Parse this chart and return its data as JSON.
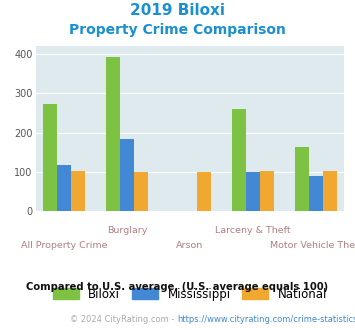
{
  "title_line1": "2019 Biloxi",
  "title_line2": "Property Crime Comparison",
  "biloxi": [
    272,
    393,
    0,
    261,
    163
  ],
  "mississippi": [
    117,
    185,
    0,
    101,
    90
  ],
  "national": [
    102,
    101,
    101,
    102,
    102
  ],
  "group_label_row1": [
    "",
    "Burglary",
    "",
    "Larceny & Theft",
    ""
  ],
  "group_label_row2": [
    "All Property Crime",
    "",
    "Arson",
    "",
    "Motor Vehicle Theft"
  ],
  "color_biloxi": "#7dc242",
  "color_ms": "#4288d4",
  "color_nat": "#f0a830",
  "ylim": [
    0,
    420
  ],
  "yticks": [
    0,
    100,
    200,
    300,
    400
  ],
  "bg_color": "#deeaee",
  "title_color": "#1a8fd1",
  "note_text": "Compared to U.S. average. (U.S. average equals 100)",
  "footer_prefix": "© 2024 CityRating.com - ",
  "footer_link": "https://www.cityrating.com/crime-statistics/",
  "footer_color": "#aaaaaa",
  "footer_link_color": "#4288d4",
  "legend_labels": [
    "Biloxi",
    "Mississippi",
    "National"
  ]
}
